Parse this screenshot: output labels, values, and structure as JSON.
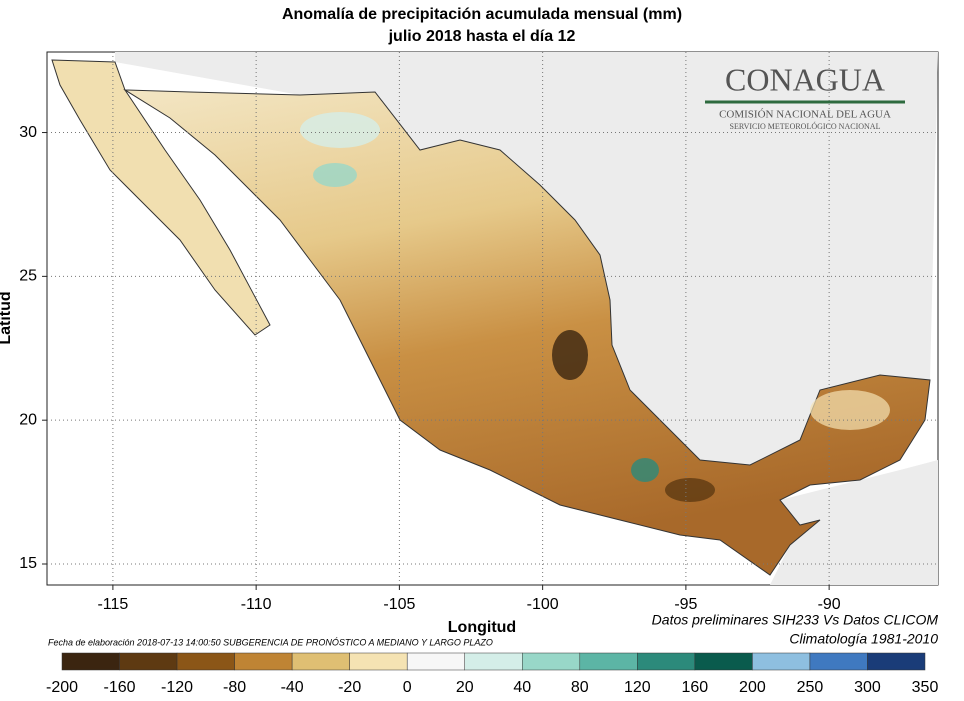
{
  "map": {
    "title": "Anomalía de precipitación acumulada mensual (mm)",
    "subtitle": "julio 2018 hasta el día 12",
    "xlabel": "Longitud",
    "ylabel": "Latitud",
    "xlim": [
      -117.3,
      -86.2
    ],
    "ylim": [
      14.27,
      32.8
    ],
    "xticks": [
      -115,
      -110,
      -105,
      -100,
      -95,
      -90
    ],
    "yticks": [
      15,
      20,
      25,
      30
    ],
    "logo": {
      "name": "CONAGUA",
      "line1": "COMISIÓN NACIONAL DEL AGUA",
      "line2": "SERVICIO METEOROLÓGICO NACIONAL"
    },
    "note_left": "Fecha de elaboración 2018-07-13 14:00:50 SUBGERENCIA DE PRONÓSTICO A MEDIANO Y LARGO PLAZO",
    "note_right1": "Datos preliminares SIH233 Vs Datos CLICOM",
    "note_right2": "Climatología 1981-2010",
    "colorbar": {
      "ticks": [
        -200,
        -160,
        -120,
        -80,
        -40,
        -20,
        0,
        20,
        40,
        80,
        120,
        160,
        200,
        250,
        300,
        350
      ],
      "colors": [
        "#3b2510",
        "#5e3a12",
        "#8b5617",
        "#bf8434",
        "#dfbf73",
        "#f5e3b3",
        "#f7f7f7",
        "#d4eee8",
        "#98d7c8",
        "#5cb5a5",
        "#2c8a7b",
        "#0a5b4d",
        "#8ebfe0",
        "#3f79c0",
        "#1a3c78"
      ]
    }
  }
}
